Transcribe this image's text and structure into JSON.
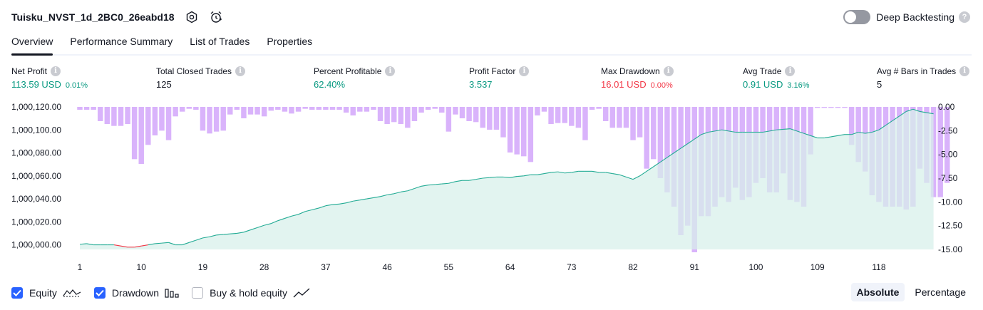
{
  "header": {
    "title": "Tuisku_NVST_1d_2BC0_26eabd18",
    "deep_label": "Deep Backtesting"
  },
  "tabs": [
    {
      "label": "Overview",
      "active": true
    },
    {
      "label": "Performance Summary",
      "active": false
    },
    {
      "label": "List of Trades",
      "active": false
    },
    {
      "label": "Properties",
      "active": false
    }
  ],
  "metrics": [
    {
      "label": "Net Profit",
      "value": "113.59 USD",
      "pct": "0.01%",
      "tone": "pos"
    },
    {
      "label": "Total Closed Trades",
      "value": "125",
      "pct": "",
      "tone": "neutral"
    },
    {
      "label": "Percent Profitable",
      "value": "62.40%",
      "pct": "",
      "tone": "pos"
    },
    {
      "label": "Profit Factor",
      "value": "3.537",
      "pct": "",
      "tone": "pos"
    },
    {
      "label": "Max Drawdown",
      "value": "16.01 USD",
      "pct": "0.00%",
      "tone": "neg"
    },
    {
      "label": "Avg Trade",
      "value": "0.91 USD",
      "pct": "3.16%",
      "tone": "pos"
    },
    {
      "label": "Avg # Bars in Trades",
      "value": "5",
      "pct": "",
      "tone": "neutral"
    }
  ],
  "legend": {
    "equity": {
      "label": "Equity",
      "checked": true
    },
    "drawdown": {
      "label": "Drawdown",
      "checked": true
    },
    "buyhold": {
      "label": "Buy & hold equity",
      "checked": false
    }
  },
  "modes": {
    "absolute": "Absolute",
    "percentage": "Percentage",
    "active": "absolute"
  },
  "colors": {
    "equity_up": "#22ab94",
    "equity_down": "#f23645",
    "equity_fill": "#d7f0ea",
    "drawdown": "#d9b3fb",
    "axis_text": "#131722"
  },
  "chart_data": {
    "type": "area",
    "x_ticks": [
      1,
      10,
      19,
      28,
      37,
      46,
      55,
      64,
      73,
      82,
      91,
      100,
      109,
      118
    ],
    "x_range": [
      1,
      125
    ],
    "y_left": {
      "range": [
        999996,
        1000120
      ],
      "ticks": [
        1000000,
        1000020,
        1000040,
        1000060,
        1000080,
        1000100,
        1000120
      ],
      "tick_labels": [
        "1,000,000.00",
        "1,000,020.00",
        "1,000,040.00",
        "1,000,060.00",
        "1,000,080.00",
        "1,000,100.00",
        "1,000,120.00"
      ]
    },
    "y_right": {
      "range": [
        -15,
        0
      ],
      "ticks": [
        0,
        -2.5,
        -5,
        -7.5,
        -10,
        -12.5,
        -15
      ],
      "tick_labels": [
        "0.00",
        "-2.50",
        "-5.00",
        "-7.50",
        "-10.00",
        "-12.50",
        "-15.00"
      ]
    },
    "series": [
      {
        "name": "Equity",
        "values": [
          1000000.5,
          1000001,
          1000000,
          1000000,
          1000000,
          1000000,
          999999,
          999998,
          999998,
          999999,
          1000000,
          1000001,
          1000001.5,
          1000002,
          1000000,
          1000000,
          1000002,
          1000004,
          1000006,
          1000007,
          1000008.5,
          1000009,
          1000009.5,
          1000010,
          1000011,
          1000013,
          1000015,
          1000017,
          1000018.5,
          1000021,
          1000023,
          1000025,
          1000026.5,
          1000029,
          1000030.5,
          1000032,
          1000034,
          1000035,
          1000035.5,
          1000036.5,
          1000038,
          1000039,
          1000040,
          1000041,
          1000042,
          1000043.5,
          1000044.5,
          1000046,
          1000047,
          1000049,
          1000051,
          1000052,
          1000052.5,
          1000053,
          1000053.5,
          1000055,
          1000056,
          1000056,
          1000057,
          1000058,
          1000058.5,
          1000059,
          1000059,
          1000058.5,
          1000059.5,
          1000060,
          1000061,
          1000061,
          1000062,
          1000063,
          1000063.5,
          1000062.5,
          1000063,
          1000064,
          1000064,
          1000064,
          1000063,
          1000063,
          1000062,
          1000061,
          1000059,
          1000057,
          1000060,
          1000064,
          1000068,
          1000072,
          1000076,
          1000080,
          1000084,
          1000088,
          1000092,
          1000096,
          1000098,
          1000099,
          1000100,
          1000099,
          1000098,
          1000098,
          1000098,
          1000098,
          1000098,
          1000099,
          1000100,
          1000100.5,
          1000101,
          1000099,
          1000097,
          1000095,
          1000093,
          1000093,
          1000094,
          1000095,
          1000096,
          1000096,
          1000098,
          1000097,
          1000098,
          1000100,
          1000104,
          1000108,
          1000112,
          1000116,
          1000118,
          1000116,
          1000115,
          1000114
        ]
      },
      {
        "name": "Drawdown",
        "values": [
          -0.3,
          -0.3,
          -0.3,
          -1.5,
          -1.8,
          -2.0,
          -2.0,
          -1.8,
          -5.5,
          -6.0,
          -4.0,
          -3.0,
          -2.5,
          -3.5,
          -1.0,
          -0.5,
          -0.2,
          -0.3,
          -2.5,
          -2.8,
          -2.6,
          -2.5,
          -0.8,
          -0.3,
          -1.2,
          -0.8,
          -0.8,
          -1.0,
          -0.4,
          -0.3,
          -0.5,
          -0.7,
          -0.5,
          -0.2,
          -0.3,
          -0.3,
          -0.3,
          -0.3,
          -0.3,
          -0.6,
          -0.9,
          -0.5,
          -0.5,
          -0.3,
          -1.5,
          -1.8,
          -1.6,
          -1.8,
          -2.2,
          -1.5,
          -0.6,
          -0.3,
          -0.2,
          -0.6,
          -2.6,
          -0.8,
          -1.2,
          -1.5,
          -1.6,
          -2.2,
          -2.4,
          -2.4,
          -3.2,
          -4.8,
          -5.0,
          -5.2,
          -5.8,
          -0.9,
          -0.5,
          -1.8,
          -1.7,
          -1.7,
          -2.0,
          -2.2,
          -3.5,
          -0.3,
          -0.2,
          -1.5,
          -2.2,
          -2.2,
          -2.2,
          -3.5,
          -3.2,
          -6.5,
          -5.5,
          -7.5,
          -9.0,
          -10.5,
          -13.5,
          -12.5,
          -15.3,
          -11.5,
          -11.5,
          -10.5,
          -9.5,
          -10.0,
          -8.5,
          -9.8,
          -9.5,
          -8.0,
          -7.5,
          -9.0,
          -9.0,
          -7.0,
          -9.8,
          -10.0,
          -10.5,
          -5.0,
          -0.1,
          -0.1,
          -0.1,
          -0.1,
          -0.1,
          -4.0,
          -5.8,
          -6.8,
          -9.3,
          -10.0,
          -10.5,
          -10.5,
          -10.5,
          -10.8,
          -10.5,
          -6.5,
          -8.0,
          -9.5,
          -9.5,
          -8.0
        ]
      }
    ],
    "grid": false,
    "legend_position": "bottom-left"
  }
}
